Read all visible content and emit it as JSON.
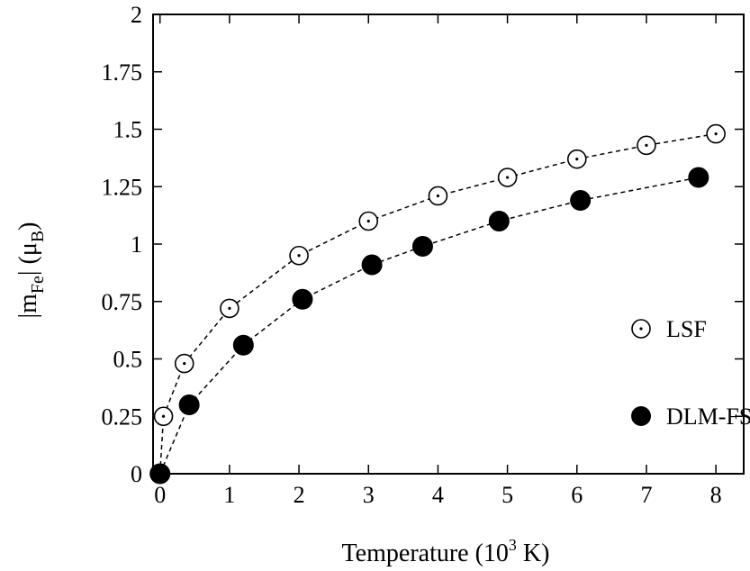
{
  "chart_data": {
    "type": "scatter",
    "xlabel": "Temperature (10³ K)",
    "ylabel": "|m_Fe| (μ_B)",
    "xlim": [
      -0.1,
      8.4
    ],
    "ylim": [
      0,
      2
    ],
    "xticks": [
      "0",
      "1",
      "2",
      "3",
      "4",
      "5",
      "6",
      "7",
      "8"
    ],
    "yticks": [
      "0",
      "0.25",
      "0.5",
      "0.75",
      "1",
      "1.25",
      "1.5",
      "1.75",
      "2"
    ],
    "legend_position": "right-middle",
    "grid": false,
    "series": [
      {
        "name": "LSF",
        "marker": "open-circle-dot",
        "line": "dashed",
        "points": [
          {
            "x": 0,
            "y": 0
          },
          {
            "x": 0.05,
            "y": 0.25
          },
          {
            "x": 0.35,
            "y": 0.48
          },
          {
            "x": 1.0,
            "y": 0.72
          },
          {
            "x": 2.0,
            "y": 0.95
          },
          {
            "x": 3.0,
            "y": 1.1
          },
          {
            "x": 4.0,
            "y": 1.21
          },
          {
            "x": 5.0,
            "y": 1.29
          },
          {
            "x": 6.0,
            "y": 1.37
          },
          {
            "x": 7.0,
            "y": 1.43
          },
          {
            "x": 8.0,
            "y": 1.48
          }
        ]
      },
      {
        "name": "DLM-FSM",
        "marker": "filled-circle",
        "line": "dashed",
        "points": [
          {
            "x": 0,
            "y": 0
          },
          {
            "x": 0.42,
            "y": 0.3
          },
          {
            "x": 1.2,
            "y": 0.56
          },
          {
            "x": 2.05,
            "y": 0.76
          },
          {
            "x": 3.05,
            "y": 0.91
          },
          {
            "x": 3.78,
            "y": 0.99
          },
          {
            "x": 4.88,
            "y": 1.1
          },
          {
            "x": 6.05,
            "y": 1.19
          },
          {
            "x": 7.75,
            "y": 1.29
          }
        ]
      }
    ]
  }
}
